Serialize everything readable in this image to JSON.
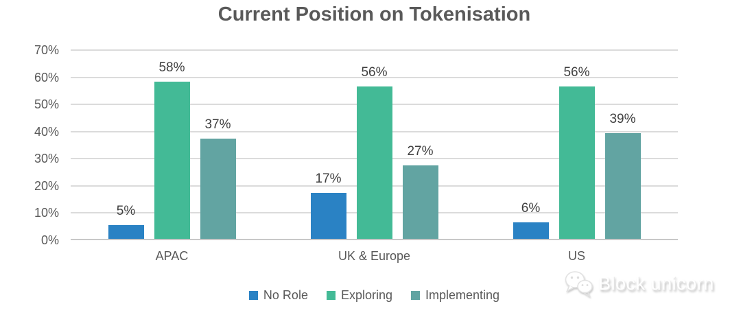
{
  "chart_data": {
    "type": "bar",
    "title": "Current Position on Tokenisation",
    "categories": [
      "APAC",
      "UK & Europe",
      "US"
    ],
    "series": [
      {
        "name": "No Role",
        "color": "#2A82C4",
        "values": [
          5,
          17,
          6
        ]
      },
      {
        "name": "Exploring",
        "color": "#43BA96",
        "values": [
          58,
          56,
          56
        ]
      },
      {
        "name": "Implementing",
        "color": "#62A4A2",
        "values": [
          37,
          27,
          39
        ]
      }
    ],
    "xlabel": "",
    "ylabel": "",
    "ylim": [
      0,
      70
    ],
    "ytick_step": 10,
    "ytick_labels": [
      "0%",
      "10%",
      "20%",
      "30%",
      "40%",
      "50%",
      "60%",
      "70%"
    ],
    "grid": true,
    "legend_position": "bottom",
    "data_label_format": "{v}%"
  },
  "colors": {
    "title_text": "#595959",
    "axis_text": "#595959",
    "data_label_text": "#3F3F3F",
    "gridline": "#DBDBDB",
    "axis_line": "#C8C8C8"
  },
  "watermark": {
    "text": "Block unicorn",
    "icon": "wechat-chat-bubbles-icon"
  }
}
